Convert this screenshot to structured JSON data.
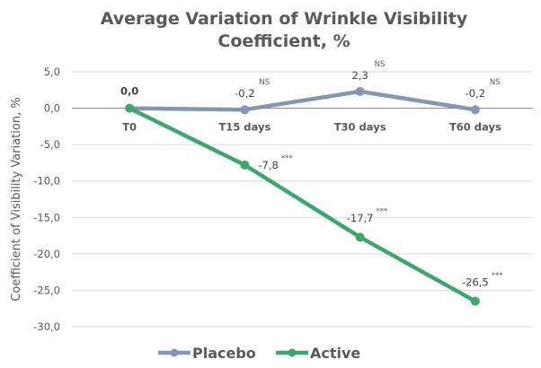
{
  "chart_data": {
    "type": "line",
    "title": [
      "Average Variation of Wrinkle Visibility",
      "Coefficient, %"
    ],
    "xlabel": "",
    "ylabel": "Coefficient of Visibility Variation, %",
    "ylim": [
      -30,
      5
    ],
    "yticks": [
      5,
      0,
      -5,
      -10,
      -15,
      -20,
      -25,
      -30
    ],
    "ytick_labels": [
      "5,0",
      "0,0",
      "-5,0",
      "-10,0",
      "-15,0",
      "-20,0",
      "-25,0",
      "-30,0"
    ],
    "categories": [
      "T0",
      "T15 days",
      "T30 days",
      "T60 days"
    ],
    "grid": true,
    "legend_position": "bottom",
    "series": [
      {
        "name": "Placebo",
        "color": "#8496b0",
        "values": [
          0.0,
          -0.2,
          2.3,
          -0.2
        ],
        "labels": [
          "",
          "-0,2",
          "2,3",
          "-0,2"
        ],
        "significance": [
          "",
          "NS",
          "NS",
          "NS"
        ]
      },
      {
        "name": "Active",
        "color": "#3fa46e",
        "values": [
          0.0,
          -7.8,
          -17.7,
          -26.5
        ],
        "labels": [
          "0,0",
          "-7,8",
          "-17,7",
          "-26,5"
        ],
        "significance": [
          "",
          "***",
          "***",
          "***"
        ]
      }
    ]
  }
}
